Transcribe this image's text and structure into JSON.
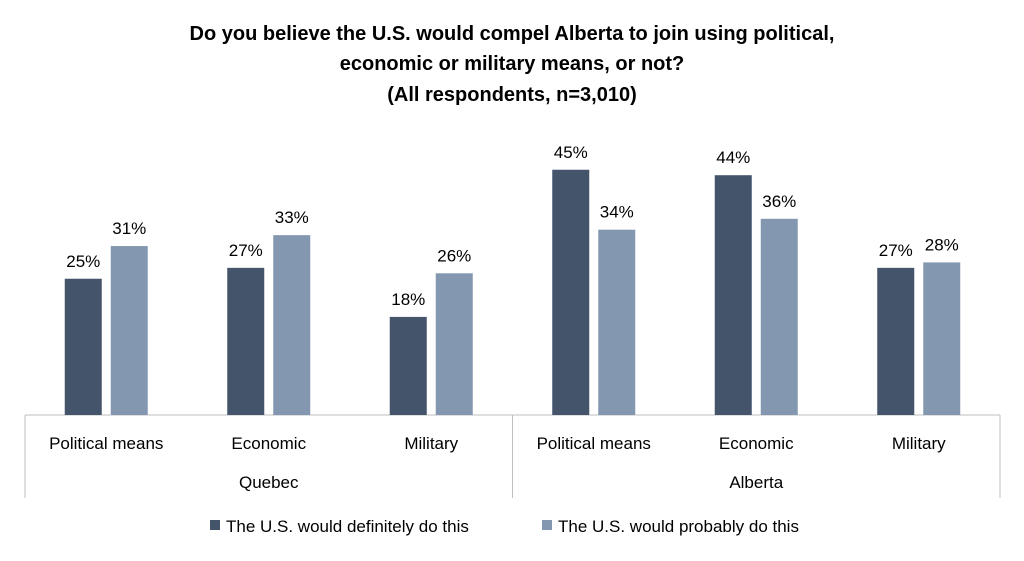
{
  "chart_data": {
    "type": "bar",
    "title_lines": [
      "Do you believe the U.S. would compel Alberta to join using political,",
      "economic or military means, or not?",
      "(All respondents, n=3,010)"
    ],
    "groups": [
      {
        "name": "Quebec",
        "categories": [
          "Political means",
          "Economic",
          "Military"
        ]
      },
      {
        "name": "Alberta",
        "categories": [
          "Political means",
          "Economic",
          "Military"
        ]
      }
    ],
    "series": [
      {
        "name": "The U.S. would definitely do this",
        "color": "#44546a",
        "values": [
          25,
          27,
          18,
          45,
          44,
          27
        ],
        "labels": [
          "25%",
          "27%",
          "18%",
          "45%",
          "44%",
          "27%"
        ]
      },
      {
        "name": "The U.S. would probably do this",
        "color": "#8497b0",
        "values": [
          31,
          33,
          26,
          34,
          36,
          28
        ],
        "labels": [
          "31%",
          "33%",
          "26%",
          "34%",
          "36%",
          "28%"
        ]
      }
    ],
    "ylim": [
      0,
      50
    ],
    "grid": false,
    "legend_position": "bottom"
  }
}
